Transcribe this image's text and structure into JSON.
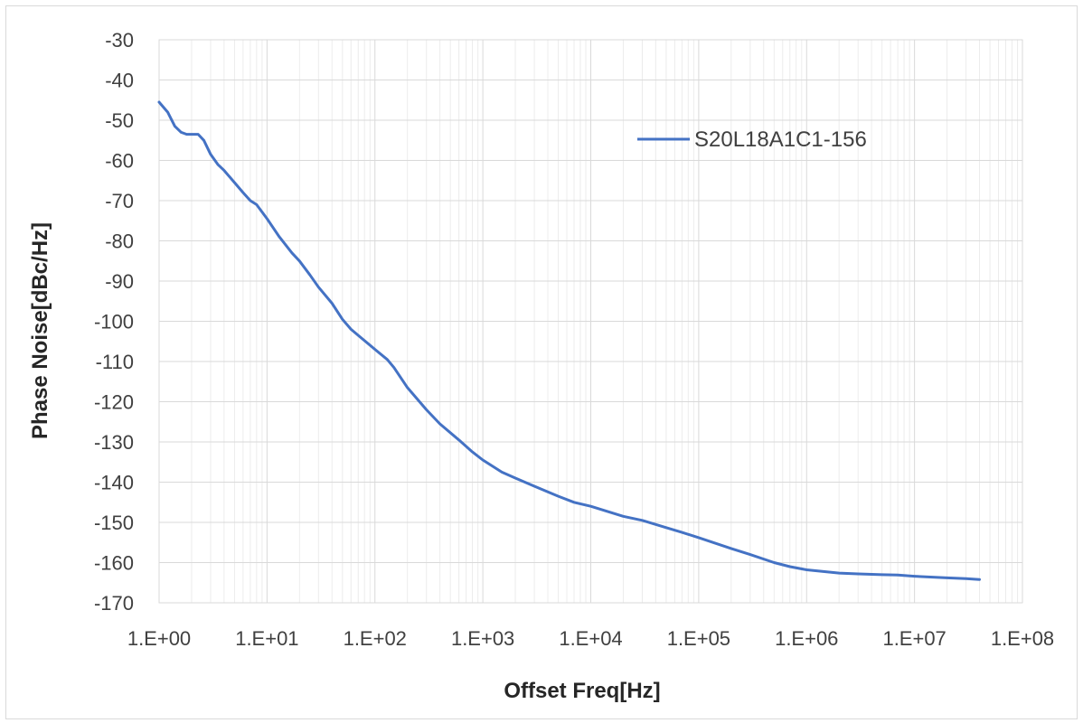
{
  "chart_data": {
    "type": "line",
    "xlabel": "Offset Freq[Hz]",
    "ylabel": "Phase Noise[dBc/Hz]",
    "x_scale": "log",
    "xlim": [
      1,
      100000000
    ],
    "ylim": [
      -170,
      -30
    ],
    "x_tick_labels": [
      "1.E+00",
      "1.E+01",
      "1.E+02",
      "1.E+03",
      "1.E+04",
      "1.E+05",
      "1.E+06",
      "1.E+07",
      "1.E+08"
    ],
    "y_tick_labels": [
      "-30",
      "-40",
      "-50",
      "-60",
      "-70",
      "-80",
      "-90",
      "-100",
      "-110",
      "-120",
      "-130",
      "-140",
      "-150",
      "-160",
      "-170"
    ],
    "grid": true,
    "legend_position": "top-right",
    "series": [
      {
        "name": "S20L18A1C1-156",
        "color": "#4472c4",
        "x": [
          1,
          1.2,
          1.4,
          1.6,
          1.8,
          2,
          2.3,
          2.6,
          3,
          3.5,
          4,
          5,
          6,
          7,
          8,
          10,
          13,
          17,
          20,
          25,
          30,
          40,
          50,
          60,
          70,
          100,
          130,
          150,
          200,
          300,
          400,
          600,
          800,
          1000,
          1500,
          2000,
          3000,
          5000,
          7000,
          10000,
          20000,
          30000,
          50000,
          70000,
          100000,
          200000,
          300000,
          500000,
          700000,
          1000000,
          2000000,
          3000000,
          5000000,
          7000000,
          10000000,
          20000000,
          30000000,
          40000000
        ],
        "y": [
          -45.5,
          -48,
          -51.5,
          -53,
          -53.5,
          -53.5,
          -53.5,
          -55,
          -58.5,
          -61,
          -62.5,
          -65.5,
          -68,
          -70,
          -71,
          -74.5,
          -79,
          -83,
          -85,
          -88.5,
          -91.5,
          -95.5,
          -99.5,
          -102,
          -103.5,
          -107,
          -109.5,
          -111.5,
          -116.5,
          -122,
          -125.5,
          -129.5,
          -132.5,
          -134.5,
          -137.5,
          -139,
          -141,
          -143.5,
          -145,
          -146,
          -148.5,
          -149.5,
          -151.3,
          -152.5,
          -153.8,
          -156.5,
          -158,
          -160,
          -161,
          -161.8,
          -162.6,
          -162.8,
          -163,
          -163.1,
          -163.4,
          -163.8,
          -164,
          -164.2
        ]
      }
    ]
  }
}
